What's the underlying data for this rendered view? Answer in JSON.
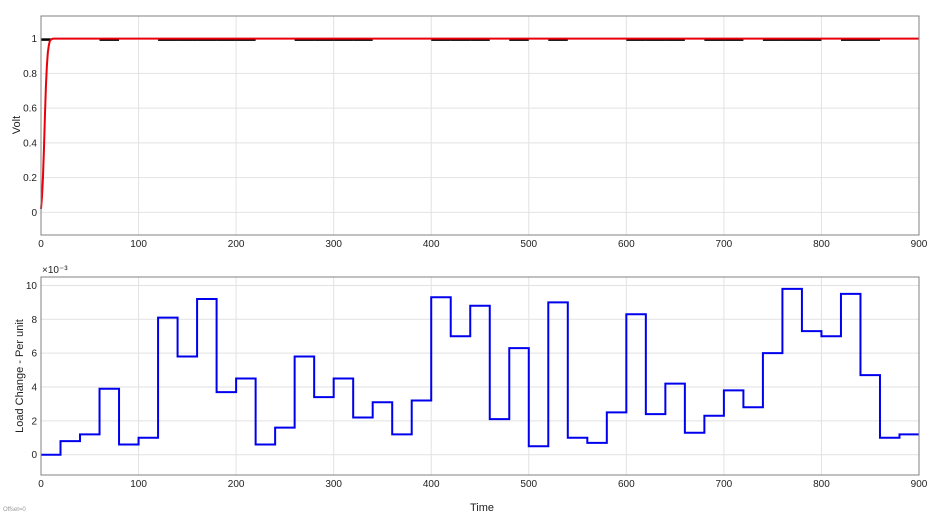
{
  "chart_data": [
    {
      "type": "line",
      "title": "",
      "xlabel": "",
      "ylabel": "Volt",
      "xlim": [
        0,
        900
      ],
      "ylim": [
        -0.13,
        1.13
      ],
      "xticks": [
        "0",
        "100",
        "200",
        "300",
        "400",
        "500",
        "600",
        "700",
        "800",
        "900"
      ],
      "yticks": [
        "0",
        "0.2",
        "0.4",
        "0.6",
        "0.8",
        "1"
      ],
      "grid": true,
      "series": [
        {
          "color": "#e8000b",
          "x": [
            0,
            1,
            2,
            3,
            4,
            5,
            6,
            7,
            8,
            9,
            10,
            11,
            12,
            14,
            17,
            20,
            900
          ],
          "y": [
            0.02,
            0.09,
            0.2,
            0.36,
            0.55,
            0.72,
            0.84,
            0.92,
            0.96,
            0.985,
            0.993,
            0.997,
            0.999,
            1.0,
            1.0,
            1.0,
            1.0
          ]
        }
      ],
      "black_segments": [
        [
          0,
          10
        ],
        [
          60,
          80
        ],
        [
          120,
          140
        ],
        [
          140,
          160
        ],
        [
          160,
          180
        ],
        [
          180,
          200
        ],
        [
          200,
          220
        ],
        [
          260,
          280
        ],
        [
          280,
          300
        ],
        [
          300,
          320
        ],
        [
          320,
          340
        ],
        [
          400,
          420
        ],
        [
          420,
          440
        ],
        [
          440,
          460
        ],
        [
          480,
          500
        ],
        [
          520,
          540
        ],
        [
          600,
          620
        ],
        [
          620,
          640
        ],
        [
          640,
          660
        ],
        [
          680,
          700
        ],
        [
          700,
          720
        ],
        [
          740,
          760
        ],
        [
          760,
          780
        ],
        [
          780,
          800
        ],
        [
          820,
          840
        ],
        [
          840,
          860
        ]
      ]
    },
    {
      "type": "line",
      "title": "",
      "xlabel": "Time",
      "ylabel": "Load Change - Per unit",
      "exponent": "×10⁻³",
      "xlim": [
        0,
        900
      ],
      "ylim": [
        -0.0012,
        0.0105
      ],
      "xticks": [
        "0",
        "100",
        "200",
        "300",
        "400",
        "500",
        "600",
        "700",
        "800",
        "900"
      ],
      "yticks": [
        "0",
        "2",
        "4",
        "6",
        "8",
        "10"
      ],
      "grid": true,
      "step": true,
      "series": [
        {
          "color": "#0000ee",
          "x": [
            0,
            20,
            40,
            60,
            80,
            100,
            120,
            140,
            160,
            180,
            200,
            220,
            240,
            260,
            280,
            300,
            320,
            340,
            360,
            380,
            400,
            420,
            440,
            460,
            480,
            500,
            520,
            540,
            560,
            580,
            600,
            620,
            640,
            660,
            680,
            700,
            720,
            740,
            760,
            780,
            800,
            820,
            840,
            860,
            880,
            900
          ],
          "y": [
            0.0,
            0.0008,
            0.0012,
            0.0039,
            0.0006,
            0.001,
            0.0081,
            0.0058,
            0.0092,
            0.0037,
            0.0045,
            0.0006,
            0.0016,
            0.0058,
            0.0034,
            0.0045,
            0.0022,
            0.0031,
            0.0012,
            0.0032,
            0.0093,
            0.007,
            0.0088,
            0.0021,
            0.0063,
            0.0005,
            0.009,
            0.001,
            0.0007,
            0.0025,
            0.0083,
            0.0024,
            0.0042,
            0.0013,
            0.0023,
            0.0038,
            0.0028,
            0.006,
            0.0098,
            0.0073,
            0.007,
            0.0095,
            0.0047,
            0.001,
            0.0012,
            0.0012
          ]
        }
      ]
    }
  ],
  "footnote": "Offset=0",
  "colors": {
    "grid": "#e2e2e2",
    "axes_border": "#808080",
    "reference_line": "#000000"
  }
}
